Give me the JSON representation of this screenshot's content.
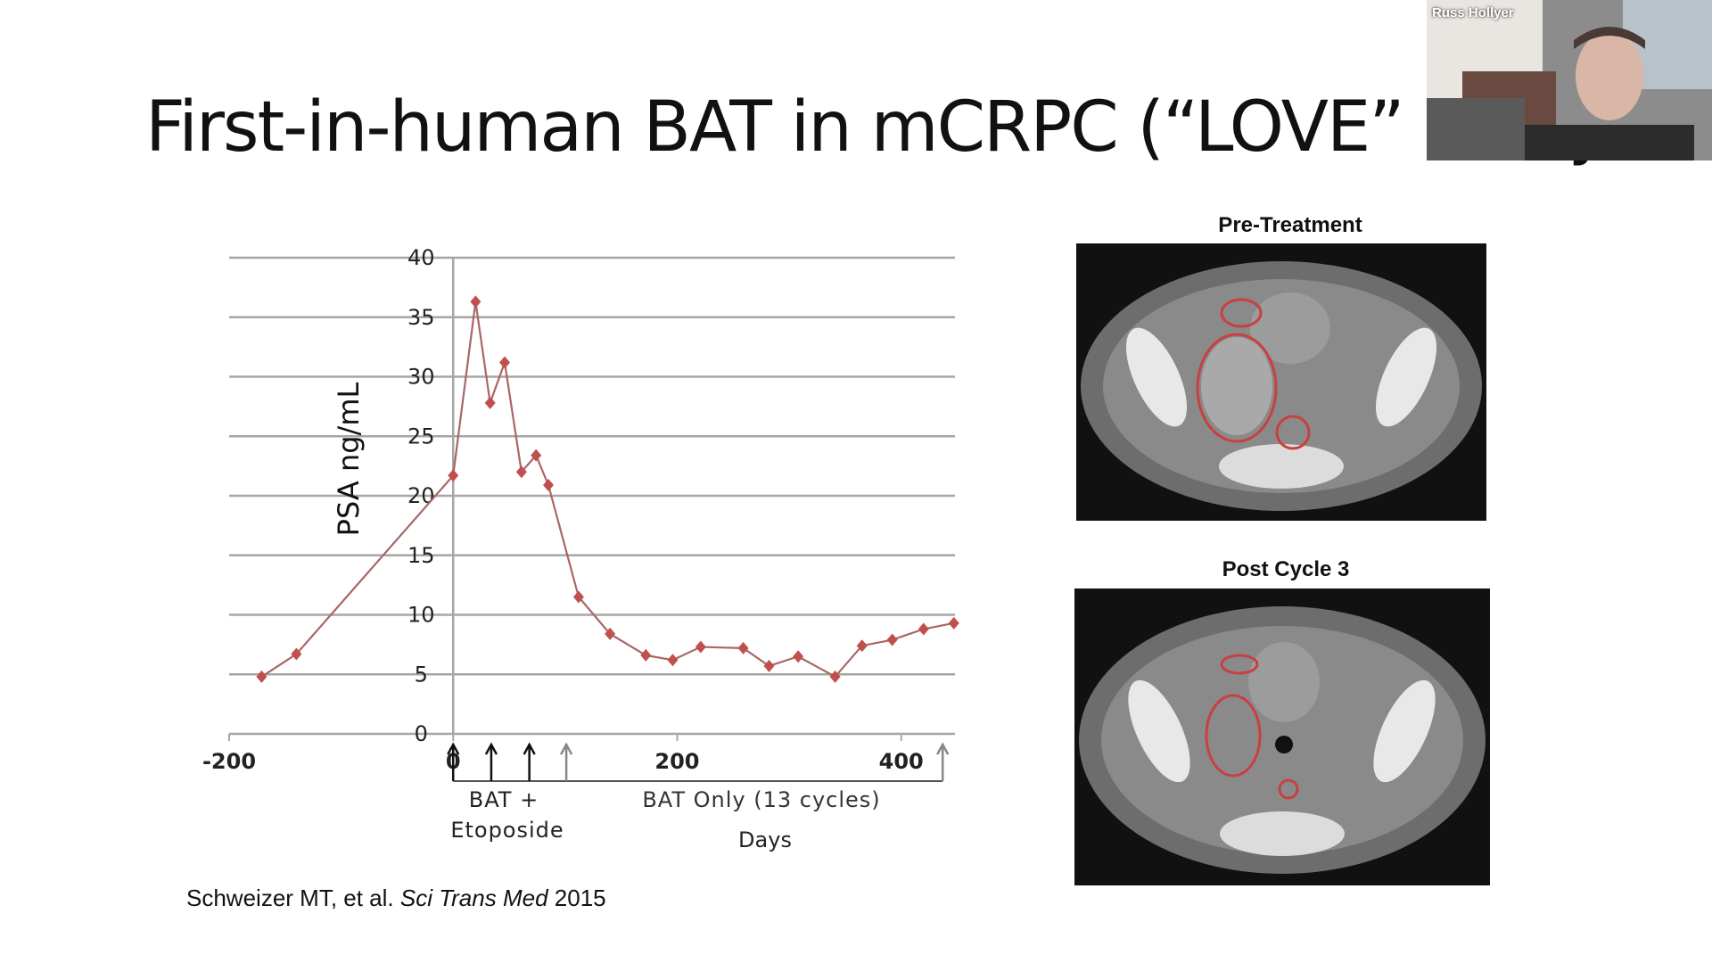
{
  "slide": {
    "title": "First-in-human BAT in mCRPC  (“LOVE” study)",
    "citation_authors": "Schweizer MT, et al. ",
    "citation_journal": "Sci Trans Med",
    "citation_year": " 2015"
  },
  "images": {
    "pre_label": "Pre-Treatment",
    "post_label": "Post Cycle 3"
  },
  "webcam": {
    "participant_name": "Russ Hollyer"
  },
  "colors": {
    "series": "#c0504d",
    "grid": "#a6a6a6"
  },
  "chart_data": {
    "type": "line",
    "title": "",
    "xlabel": "Days",
    "ylabel": "PSA ng/mL",
    "xlim": [
      -200,
      448
    ],
    "ylim": [
      0,
      40
    ],
    "grid": true,
    "x_ticks": [
      "-200",
      "0",
      "200",
      "400"
    ],
    "x_tick_values": [
      -200,
      0,
      200,
      400
    ],
    "y_ticks": [
      "0",
      "5",
      "10",
      "15",
      "20",
      "25",
      "30",
      "35",
      "40"
    ],
    "y_tick_values": [
      0,
      5,
      10,
      15,
      20,
      25,
      30,
      35,
      40
    ],
    "x": [
      -171,
      -140,
      0,
      20,
      33,
      46,
      61,
      74,
      85,
      112,
      140,
      172,
      196,
      221,
      259,
      282,
      308,
      341,
      365,
      392,
      420,
      447
    ],
    "y": [
      4.8,
      6.7,
      21.7,
      36.3,
      27.8,
      31.2,
      22.0,
      23.4,
      20.9,
      11.5,
      8.4,
      6.6,
      6.2,
      7.3,
      7.2,
      5.7,
      6.5,
      4.8,
      7.4,
      7.9,
      8.8,
      9.3
    ],
    "dose_arrows": {
      "bat_etoposide_days": [
        0,
        34,
        68
      ],
      "bat_only_days": [
        101,
        437
      ]
    },
    "annotations": {
      "bat_etoposide_line1": "BAT +",
      "bat_etoposide_line2": "Etoposide",
      "bat_only": "BAT Only (13 cycles)"
    }
  }
}
